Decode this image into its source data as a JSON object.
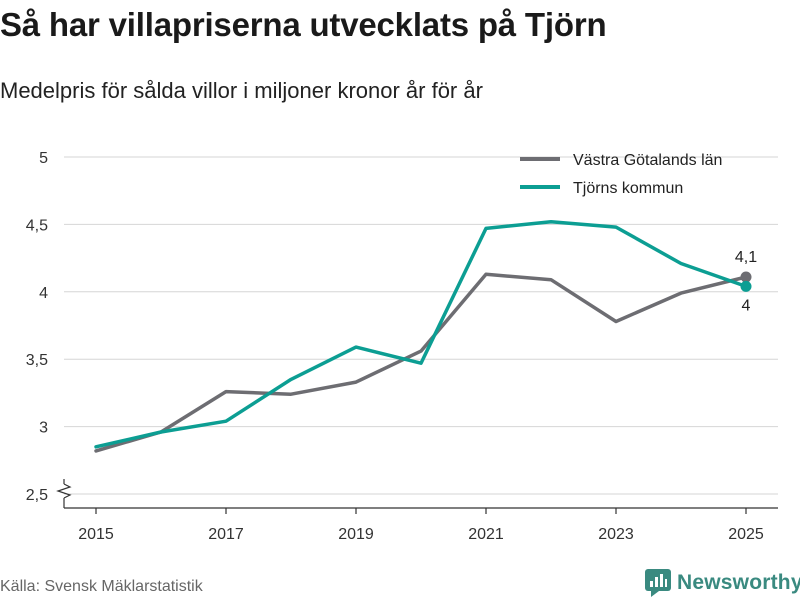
{
  "header": {
    "title": "Så har villapriserna utvecklats på Tjörn",
    "subtitle": "Medelpris för sålda villor i miljoner kronor år för år"
  },
  "footer": {
    "source": "Källa: Svensk Mäklarstatistik",
    "brand": "Newsworthy"
  },
  "colors": {
    "series_gray": "#6d6d72",
    "series_teal": "#0c9e93",
    "grid": "#d6d6d6",
    "brand": "#3a8a80"
  },
  "chart_data": {
    "type": "line",
    "title": "Så har villapriserna utvecklats på Tjörn",
    "subtitle": "Medelpris för sålda villor i miljoner kronor år för år",
    "xlabel": "",
    "ylabel": "",
    "x": [
      2015,
      2016,
      2017,
      2018,
      2019,
      2020,
      2021,
      2022,
      2023,
      2024,
      2025
    ],
    "x_ticks": [
      "2015",
      "2017",
      "2019",
      "2021",
      "2023",
      "2025"
    ],
    "ylim": [
      2.5,
      5
    ],
    "y_ticks": [
      "2,5",
      "3",
      "3,5",
      "4",
      "4,5",
      "5"
    ],
    "y_tick_values": [
      2.5,
      3,
      3.5,
      4,
      4.5,
      5
    ],
    "grid": true,
    "axis_break": true,
    "legend_position": "top-right",
    "series": [
      {
        "name": "Västra Götalands län",
        "color": "#6d6d72",
        "values": [
          2.82,
          2.96,
          3.26,
          3.24,
          3.33,
          3.56,
          4.13,
          4.09,
          3.78,
          3.99,
          4.11
        ],
        "end_label": "4,1"
      },
      {
        "name": "Tjörns kommun",
        "color": "#0c9e93",
        "values": [
          2.85,
          2.96,
          3.04,
          3.35,
          3.59,
          3.47,
          4.47,
          4.52,
          4.48,
          4.21,
          4.04
        ],
        "end_label": "4"
      }
    ]
  }
}
